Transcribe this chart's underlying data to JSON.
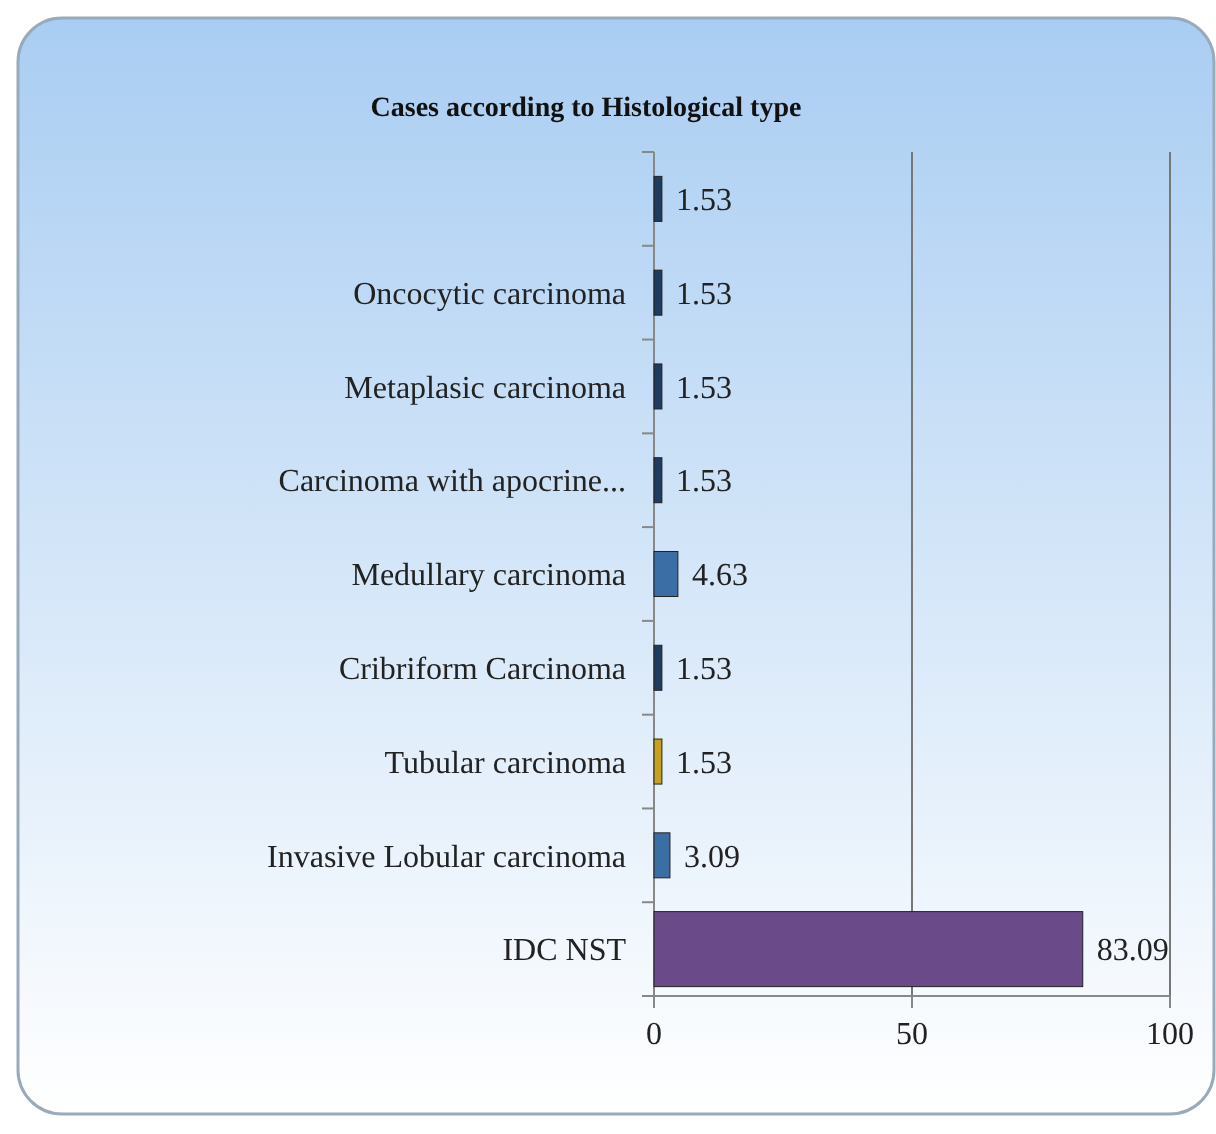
{
  "chart_data": {
    "type": "bar",
    "orientation": "horizontal",
    "title": "Cases according to Histological type",
    "categories": [
      null,
      "Oncocytic carcinoma",
      "Metaplasic carcinoma",
      "Carcinoma with apocrine...",
      "Medullary carcinoma",
      "Cribriform Carcinoma",
      "Tubular carcinoma",
      "Invasive Lobular carcinoma",
      "IDC NST"
    ],
    "values": [
      1.53,
      1.53,
      1.53,
      1.53,
      4.63,
      1.53,
      1.53,
      3.09,
      83.09
    ],
    "colors": [
      "#1f3b5e",
      "#1f3b5e",
      "#1f3b5e",
      "#1f3b5e",
      "#3a6ea5",
      "#1f3b5e",
      "#c8a020",
      "#3a6ea5",
      "#6a4a88"
    ],
    "xlim": [
      0,
      100
    ],
    "xticks": [
      0,
      50,
      100
    ],
    "grid": "x",
    "data_labels": true
  }
}
